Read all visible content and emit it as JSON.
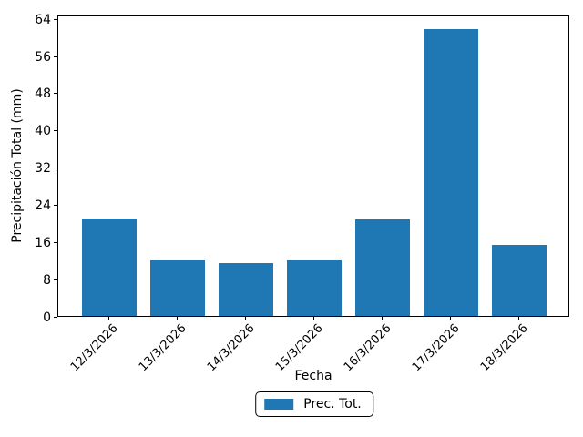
{
  "chart_data": {
    "type": "bar",
    "title": "",
    "xlabel": "Fecha",
    "ylabel": "Precipitación Total (mm)",
    "categories": [
      "12/3/2026",
      "13/3/2026",
      "14/3/2026",
      "15/3/2026",
      "16/3/2026",
      "17/3/2026",
      "18/3/2026"
    ],
    "series": [
      {
        "name": "Prec. Tot.",
        "values": [
          20.9,
          12.0,
          11.4,
          11.9,
          20.7,
          61.6,
          15.3
        ]
      }
    ],
    "yticks": [
      0,
      8,
      16,
      24,
      32,
      40,
      48,
      56,
      64
    ],
    "ylim": [
      0,
      64.7
    ],
    "xlim": [
      -0.74,
      6.74
    ],
    "bar_width_fraction": 0.8,
    "x_tick_rotation": 45,
    "grid": false,
    "legend_position": "lower-center-outside",
    "bar_color": "#1f77b4",
    "axis_color": "#000000",
    "background_color": "#ffffff"
  }
}
